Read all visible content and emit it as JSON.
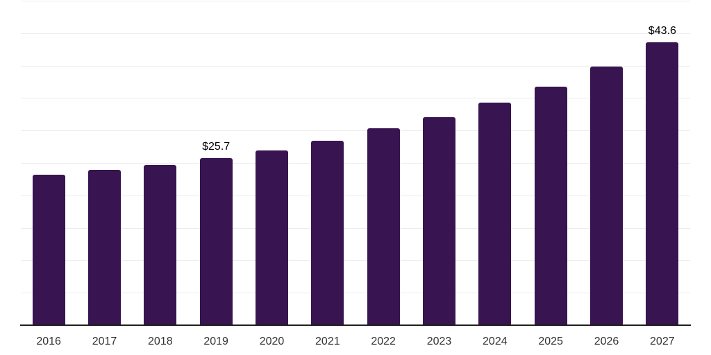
{
  "chart_data": {
    "type": "bar",
    "title": "",
    "xlabel": "",
    "ylabel": "",
    "categories": [
      "2016",
      "2017",
      "2018",
      "2019",
      "2020",
      "2021",
      "2022",
      "2023",
      "2024",
      "2025",
      "2026",
      "2027"
    ],
    "values": [
      23.2,
      23.9,
      24.7,
      25.7,
      26.9,
      28.4,
      30.3,
      32.1,
      34.3,
      36.8,
      39.9,
      43.6
    ],
    "value_labels": [
      {
        "category_index": 3,
        "text": "$25.7"
      },
      {
        "category_index": 11,
        "text": "$43.6"
      }
    ],
    "ylim": [
      0,
      50
    ],
    "gridline_step": 5,
    "grid": true,
    "y_axis_ticks_visible": false,
    "legend": "none",
    "colors": {
      "bar": "#381450",
      "gridline": "#ececec",
      "axis_line": "#1f1f1f",
      "tick_label": "#333333",
      "value_label": "#000000",
      "background": "#ffffff"
    }
  }
}
